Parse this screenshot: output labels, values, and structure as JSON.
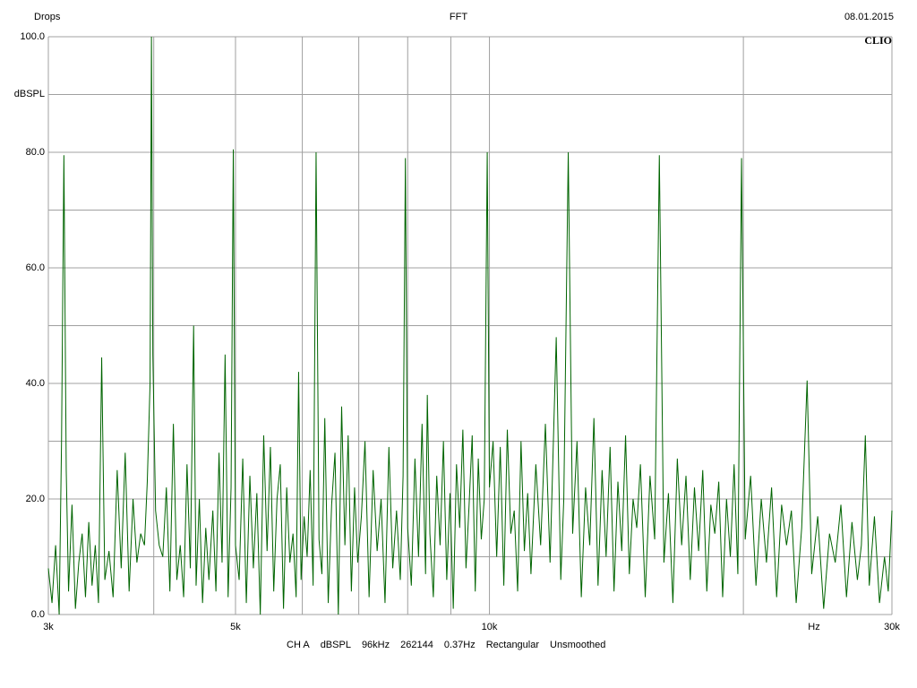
{
  "chart_data": {
    "type": "line",
    "title": "FFT",
    "name": "Drops",
    "date": "08.01.2015",
    "logo": "CLIO",
    "ylabel": "dBSPL",
    "xlabel": "Hz",
    "status": [
      "CH A",
      "dBSPL",
      "96kHz",
      "262144",
      "0.37Hz",
      "Rectangular",
      "Unsmoothed"
    ],
    "xscale": "log",
    "xlim": [
      3000,
      30000
    ],
    "ylim": [
      0,
      100
    ],
    "xticks": [
      {
        "value": 3000,
        "label": "3k"
      },
      {
        "value": 5000,
        "label": "5k"
      },
      {
        "value": 10000,
        "label": "10k"
      },
      {
        "value": 30000,
        "label": "30k"
      }
    ],
    "x_grid": [
      3000,
      4000,
      5000,
      6000,
      7000,
      8000,
      9000,
      10000,
      20000,
      30000
    ],
    "yticks": [
      {
        "value": 0,
        "label": "0.0"
      },
      {
        "value": 20,
        "label": "20.0"
      },
      {
        "value": 40,
        "label": "40.0"
      },
      {
        "value": 60,
        "label": "60.0"
      },
      {
        "value": 80,
        "label": "80.0"
      },
      {
        "value": 100,
        "label": "100.0"
      }
    ],
    "y_grid": [
      0,
      10,
      20,
      30,
      40,
      50,
      60,
      70,
      80,
      90,
      100
    ],
    "grid": true,
    "color": "#006400",
    "x": [
      3000,
      3030,
      3060,
      3090,
      3110,
      3130,
      3150,
      3170,
      3200,
      3230,
      3260,
      3290,
      3320,
      3350,
      3380,
      3410,
      3440,
      3470,
      3500,
      3540,
      3580,
      3620,
      3660,
      3700,
      3740,
      3780,
      3820,
      3860,
      3900,
      3930,
      3960,
      3975,
      3990,
      4020,
      4060,
      4100,
      4140,
      4180,
      4220,
      4260,
      4300,
      4340,
      4380,
      4420,
      4460,
      4490,
      4530,
      4570,
      4610,
      4650,
      4700,
      4740,
      4780,
      4820,
      4860,
      4900,
      4940,
      4970,
      5000,
      5050,
      5100,
      5150,
      5200,
      5250,
      5300,
      5350,
      5400,
      5450,
      5500,
      5550,
      5600,
      5650,
      5700,
      5750,
      5800,
      5850,
      5900,
      5940,
      5980,
      6030,
      6080,
      6130,
      6180,
      6230,
      6280,
      6330,
      6380,
      6440,
      6500,
      6560,
      6620,
      6680,
      6740,
      6800,
      6860,
      6920,
      6980,
      7050,
      7120,
      7200,
      7280,
      7360,
      7440,
      7520,
      7600,
      7680,
      7760,
      7840,
      7900,
      7950,
      8000,
      8080,
      8160,
      8240,
      8320,
      8400,
      8440,
      8500,
      8580,
      8660,
      8740,
      8820,
      8900,
      8980,
      9060,
      9140,
      9220,
      9300,
      9380,
      9460,
      9540,
      9620,
      9700,
      9780,
      9860,
      9940,
      10000,
      10100,
      10200,
      10300,
      10400,
      10500,
      10600,
      10700,
      10800,
      10900,
      11000,
      11100,
      11200,
      11350,
      11500,
      11650,
      11800,
      12000,
      12150,
      12250,
      12400,
      12550,
      12700,
      12850,
      13000,
      13150,
      13300,
      13450,
      13600,
      13750,
      13900,
      14050,
      14200,
      14350,
      14500,
      14650,
      14800,
      14950,
      15100,
      15300,
      15500,
      15700,
      15900,
      16100,
      16300,
      16500,
      16700,
      16900,
      17100,
      17300,
      17500,
      17700,
      17900,
      18100,
      18300,
      18500,
      18700,
      18900,
      19100,
      19300,
      19500,
      19700,
      19900,
      20100,
      20400,
      20700,
      21000,
      21300,
      21600,
      21900,
      22200,
      22500,
      22800,
      23100,
      23450,
      23800,
      24100,
      24500,
      24900,
      25300,
      25700,
      26100,
      26500,
      26900,
      27300,
      27600,
      27900,
      28200,
      28600,
      29000,
      29400,
      29700,
      30000
    ],
    "values": [
      8,
      2,
      12,
      0,
      30,
      79.5,
      25,
      4,
      19,
      1,
      9,
      14,
      3,
      16,
      5,
      12,
      2,
      44.5,
      6,
      11,
      3,
      25,
      8,
      28,
      4,
      20,
      9,
      14,
      12,
      23,
      40,
      100,
      45,
      18,
      12,
      10,
      22,
      4,
      33,
      6,
      12,
      3,
      26,
      8,
      50,
      5,
      20,
      2,
      15,
      6,
      18,
      4,
      28,
      9,
      45,
      3,
      22,
      80.5,
      12,
      6,
      27,
      2,
      24,
      8,
      21,
      0,
      31,
      11,
      29,
      4,
      20,
      26,
      1,
      22,
      9,
      14,
      3,
      42,
      6,
      17,
      10,
      25,
      5,
      80,
      13,
      7,
      34,
      2,
      19,
      28,
      0,
      36,
      12,
      31,
      4,
      22,
      9,
      17,
      30,
      3,
      25,
      11,
      20,
      2,
      29,
      8,
      18,
      6,
      24,
      79,
      15,
      5,
      27,
      10,
      33,
      7,
      38,
      14,
      3,
      24,
      12,
      30,
      6,
      21,
      1,
      26,
      15,
      32,
      8,
      19,
      31,
      4,
      27,
      13,
      20,
      80,
      22,
      30,
      10,
      29,
      5,
      32,
      14,
      18,
      4,
      30,
      11,
      21,
      7,
      26,
      12,
      33,
      9,
      48,
      6,
      20,
      80,
      14,
      30,
      3,
      22,
      12,
      34,
      5,
      25,
      10,
      29,
      4,
      23,
      11,
      31,
      7,
      20,
      15,
      26,
      3,
      24,
      13,
      79.5,
      9,
      21,
      2,
      27,
      12,
      24,
      6,
      22,
      11,
      25,
      4,
      19,
      14,
      23,
      3,
      20,
      10,
      26,
      7,
      79,
      13,
      24,
      5,
      20,
      9,
      22,
      3,
      19,
      12,
      18,
      2,
      15,
      40.5,
      7,
      17,
      1,
      14,
      9,
      19,
      3,
      16,
      6,
      12,
      31,
      5,
      17,
      2,
      10,
      4,
      18
    ]
  }
}
